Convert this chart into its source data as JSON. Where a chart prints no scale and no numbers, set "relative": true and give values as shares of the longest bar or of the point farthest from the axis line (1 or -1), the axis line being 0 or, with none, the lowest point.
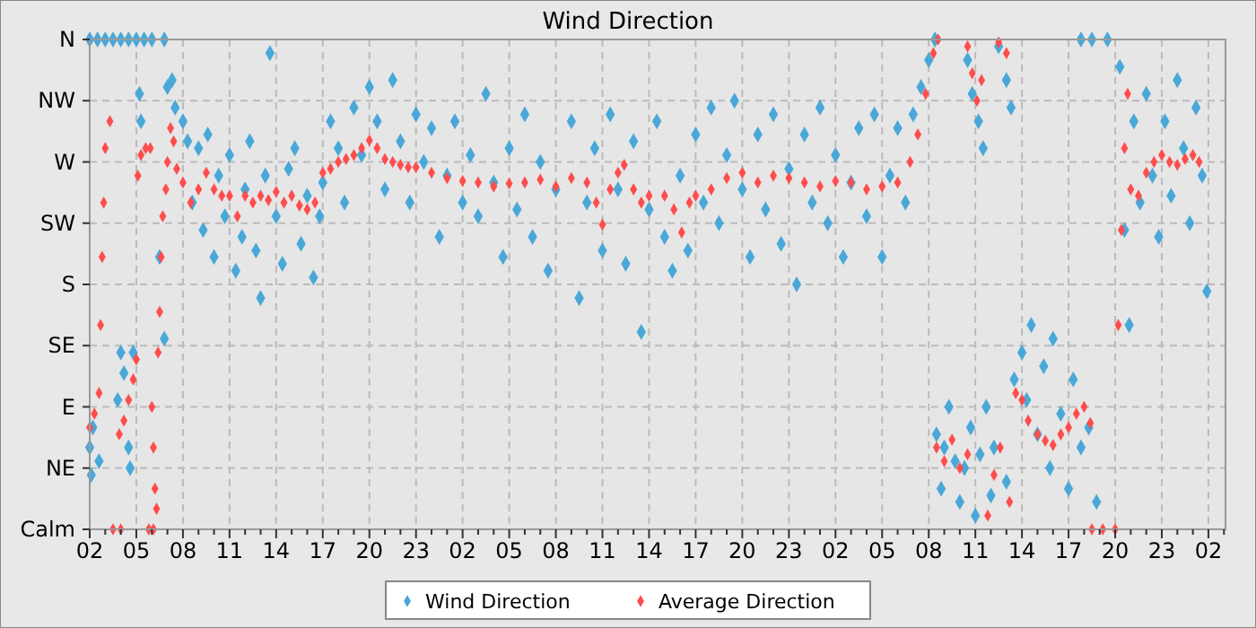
{
  "chart_data": {
    "type": "scatter",
    "title": "Wind Direction",
    "marker": "diamond",
    "grid": true,
    "legend": "bottom",
    "relative": true,
    "y_categories": [
      "N",
      "NW",
      "W",
      "SW",
      "S",
      "SE",
      "E",
      "NE",
      "Calm"
    ],
    "xlim": [
      "--01-01T02:00",
      "--01-04T03:06"
    ],
    "xticks": [
      {
        "value": "--01-01T02:00",
        "label": "02"
      },
      {
        "value": "--01-01T03:00",
        "label": null
      },
      {
        "value": "--01-01T04:00",
        "label": null
      },
      {
        "value": "--01-01T05:00",
        "label": "05"
      },
      {
        "value": "--01-01T06:00",
        "label": null
      },
      {
        "value": "--01-01T07:00",
        "label": null
      },
      {
        "value": "--01-01T08:00",
        "label": "08"
      },
      {
        "value": "--01-01T09:00",
        "label": null
      },
      {
        "value": "--01-01T10:00",
        "label": null
      },
      {
        "value": "--01-01T11:00",
        "label": "11"
      },
      {
        "value": "--01-01T12:00",
        "label": null
      },
      {
        "value": "--01-01T13:00",
        "label": null
      },
      {
        "value": "--01-01T14:00",
        "label": "14"
      },
      {
        "value": "--01-01T15:00",
        "label": null
      },
      {
        "value": "--01-01T16:00",
        "label": null
      },
      {
        "value": "--01-01T17:00",
        "label": "17"
      },
      {
        "value": "--01-01T18:00",
        "label": null
      },
      {
        "value": "--01-01T19:00",
        "label": null
      },
      {
        "value": "--01-01T20:00",
        "label": "20"
      },
      {
        "value": "--01-01T21:00",
        "label": null
      },
      {
        "value": "--01-01T22:00",
        "label": null
      },
      {
        "value": "--01-01T23:00",
        "label": "23"
      },
      {
        "value": "--01-02T00:00",
        "label": null
      },
      {
        "value": "--01-02T01:00",
        "label": null
      },
      {
        "value": "--01-02T02:00",
        "label": "02"
      },
      {
        "value": "--01-02T03:00",
        "label": null
      },
      {
        "value": "--01-02T04:00",
        "label": null
      },
      {
        "value": "--01-02T05:00",
        "label": "05"
      },
      {
        "value": "--01-02T06:00",
        "label": null
      },
      {
        "value": "--01-02T07:00",
        "label": null
      },
      {
        "value": "--01-02T08:00",
        "label": "08"
      },
      {
        "value": "--01-02T09:00",
        "label": null
      },
      {
        "value": "--01-02T10:00",
        "label": null
      },
      {
        "value": "--01-02T11:00",
        "label": "11"
      },
      {
        "value": "--01-02T12:00",
        "label": null
      },
      {
        "value": "--01-02T13:00",
        "label": null
      },
      {
        "value": "--01-02T14:00",
        "label": "14"
      },
      {
        "value": "--01-02T15:00",
        "label": null
      },
      {
        "value": "--01-02T16:00",
        "label": null
      },
      {
        "value": "--01-02T17:00",
        "label": "17"
      },
      {
        "value": "--01-02T18:00",
        "label": null
      },
      {
        "value": "--01-02T19:00",
        "label": null
      },
      {
        "value": "--01-02T20:00",
        "label": "20"
      },
      {
        "value": "--01-02T21:00",
        "label": null
      },
      {
        "value": "--01-02T22:00",
        "label": null
      },
      {
        "value": "--01-02T23:00",
        "label": "23"
      },
      {
        "value": "--01-03T00:00",
        "label": null
      },
      {
        "value": "--01-03T01:00",
        "label": null
      },
      {
        "value": "--01-03T02:00",
        "label": "02"
      },
      {
        "value": "--01-03T03:00",
        "label": null
      },
      {
        "value": "--01-03T04:00",
        "label": null
      },
      {
        "value": "--01-03T05:00",
        "label": "05"
      },
      {
        "value": "--01-03T06:00",
        "label": null
      },
      {
        "value": "--01-03T07:00",
        "label": null
      },
      {
        "value": "--01-03T08:00",
        "label": "08"
      },
      {
        "value": "--01-03T09:00",
        "label": null
      },
      {
        "value": "--01-03T10:00",
        "label": null
      },
      {
        "value": "--01-03T11:00",
        "label": "11"
      },
      {
        "value": "--01-03T12:00",
        "label": null
      },
      {
        "value": "--01-03T13:00",
        "label": null
      },
      {
        "value": "--01-03T14:00",
        "label": "14"
      },
      {
        "value": "--01-03T15:00",
        "label": null
      },
      {
        "value": "--01-03T16:00",
        "label": null
      },
      {
        "value": "--01-03T17:00",
        "label": "17"
      },
      {
        "value": "--01-03T18:00",
        "label": null
      },
      {
        "value": "--01-03T19:00",
        "label": null
      },
      {
        "value": "--01-03T20:00",
        "label": "20"
      },
      {
        "value": "--01-03T21:00",
        "label": null
      },
      {
        "value": "--01-03T22:00",
        "label": null
      },
      {
        "value": "--01-03T23:00",
        "label": "23"
      },
      {
        "value": "--01-04T00:00",
        "label": null
      },
      {
        "value": "--01-04T01:00",
        "label": null
      },
      {
        "value": "--01-04T02:00",
        "label": "02"
      },
      {
        "value": "--01-04T03:00",
        "label": null
      }
    ],
    "series": [
      {
        "name": "Wind Direction",
        "color": "#4aa8d8",
        "x": [
          "--01-01T02:00",
          "--01-01T02:30",
          "--01-01T03:00",
          "--01-01T03:30",
          "--01-01T04:00",
          "--01-01T04:30",
          "--01-01T05:00",
          "--01-01T05:30",
          "--01-01T06:00",
          "--01-01T06:48",
          "--01-01T02:00",
          "--01-01T02:06",
          "--01-01T02:12",
          "--01-01T02:36",
          "--01-01T03:48",
          "--01-01T04:00",
          "--01-01T04:12",
          "--01-01T04:30",
          "--01-01T04:36",
          "--01-01T04:48",
          "--01-01T05:12",
          "--01-01T05:18",
          "--01-01T06:30",
          "--01-01T06:48",
          "--01-01T07:00",
          "--01-01T07:18",
          "--01-01T07:30",
          "--01-01T08:00",
          "--01-01T08:18",
          "--01-01T08:36",
          "--01-01T09:00",
          "--01-01T09:18",
          "--01-01T09:36",
          "--01-01T10:00",
          "--01-01T10:18",
          "--01-01T10:42",
          "--01-01T11:00",
          "--01-01T11:24",
          "--01-01T11:48",
          "--01-01T12:00",
          "--01-01T12:18",
          "--01-01T12:42",
          "--01-01T13:00",
          "--01-01T13:18",
          "--01-01T13:36",
          "--01-01T14:00",
          "--01-01T14:24",
          "--01-01T14:48",
          "--01-01T15:12",
          "--01-01T15:36",
          "--01-01T16:00",
          "--01-01T16:24",
          "--01-01T16:48",
          "--01-01T17:00",
          "--01-01T17:30",
          "--01-01T18:00",
          "--01-01T18:24",
          "--01-01T19:00",
          "--01-01T19:30",
          "--01-01T20:00",
          "--01-01T20:30",
          "--01-01T21:00",
          "--01-01T21:30",
          "--01-01T22:00",
          "--01-01T22:36",
          "--01-01T23:00",
          "--01-01T23:30",
          "--01-02T00:00",
          "--01-02T00:30",
          "--01-02T01:00",
          "--01-02T01:30",
          "--01-02T02:00",
          "--01-02T02:30",
          "--01-02T03:00",
          "--01-02T03:30",
          "--01-02T04:00",
          "--01-02T04:36",
          "--01-02T05:00",
          "--01-02T05:30",
          "--01-02T06:00",
          "--01-02T06:30",
          "--01-02T07:00",
          "--01-02T07:30",
          "--01-02T08:00",
          "--01-02T09:00",
          "--01-02T09:30",
          "--01-02T10:00",
          "--01-02T10:30",
          "--01-02T11:00",
          "--01-02T11:30",
          "--01-02T12:00",
          "--01-02T12:30",
          "--01-02T13:00",
          "--01-02T13:30",
          "--01-02T14:00",
          "--01-02T14:30",
          "--01-02T15:00",
          "--01-02T15:30",
          "--01-02T16:00",
          "--01-02T16:30",
          "--01-02T17:00",
          "--01-02T17:30",
          "--01-02T18:00",
          "--01-02T18:30",
          "--01-02T19:00",
          "--01-02T19:30",
          "--01-02T20:00",
          "--01-02T20:30",
          "--01-02T21:00",
          "--01-02T21:30",
          "--01-02T22:00",
          "--01-02T22:30",
          "--01-02T23:00",
          "--01-02T23:30",
          "--01-03T00:00",
          "--01-03T00:30",
          "--01-03T01:00",
          "--01-03T01:30",
          "--01-03T02:00",
          "--01-03T02:30",
          "--01-03T03:00",
          "--01-03T03:30",
          "--01-03T04:00",
          "--01-03T04:30",
          "--01-03T05:00",
          "--01-03T05:30",
          "--01-03T06:00",
          "--01-03T06:30",
          "--01-03T07:00",
          "--01-03T07:30",
          "--01-03T08:00",
          "--01-03T08:24",
          "--01-03T08:30",
          "--01-03T08:48",
          "--01-03T09:00",
          "--01-03T09:18",
          "--01-03T09:42",
          "--01-03T10:00",
          "--01-03T10:18",
          "--01-03T10:42",
          "--01-03T11:00",
          "--01-03T11:18",
          "--01-03T11:42",
          "--01-03T12:00",
          "--01-03T12:12",
          "--01-03T13:00",
          "--01-03T13:30",
          "--01-03T14:00",
          "--01-03T14:18",
          "--01-03T14:36",
          "--01-03T15:00",
          "--01-03T15:24",
          "--01-03T15:48",
          "--01-03T16:00",
          "--01-03T16:30",
          "--01-03T17:00",
          "--01-03T17:18",
          "--01-03T17:48",
          "--01-03T18:18",
          "--01-03T18:48",
          "--01-03T10:30",
          "--01-03T10:48",
          "--01-03T11:12",
          "--01-03T11:30",
          "--01-03T12:30",
          "--01-03T13:00",
          "--01-03T13:18",
          "--01-03T17:48",
          "--01-03T18:30",
          "--01-03T19:30",
          "--01-03T20:18",
          "--01-03T20:36",
          "--01-03T20:54",
          "--01-03T21:12",
          "--01-03T21:36",
          "--01-03T22:00",
          "--01-03T22:24",
          "--01-03T22:48",
          "--01-03T23:12",
          "--01-03T23:36",
          "--01-04T00:00",
          "--01-04T00:24",
          "--01-04T00:48",
          "--01-04T01:12",
          "--01-04T01:36",
          "--01-04T01:54"
        ],
        "values": [
          1,
          1,
          1,
          1,
          1,
          1,
          1,
          1,
          1,
          1,
          0.167,
          0.111,
          0.208,
          0.139,
          0.264,
          0.361,
          0.319,
          0.167,
          0.125,
          0.361,
          0.889,
          0.833,
          0.556,
          0.389,
          0.903,
          0.917,
          0.861,
          0.833,
          0.792,
          0.667,
          0.778,
          0.611,
          0.806,
          0.556,
          0.722,
          0.639,
          0.764,
          0.528,
          0.597,
          0.694,
          0.792,
          0.569,
          0.472,
          0.722,
          0.972,
          0.639,
          0.542,
          0.736,
          0.778,
          0.583,
          0.681,
          0.514,
          0.639,
          0.708,
          0.833,
          0.778,
          0.667,
          0.861,
          0.764,
          0.903,
          0.833,
          0.694,
          0.917,
          0.792,
          0.667,
          0.847,
          0.75,
          0.819,
          0.597,
          0.722,
          0.833,
          0.667,
          0.764,
          0.639,
          0.889,
          0.708,
          0.556,
          0.778,
          0.653,
          0.847,
          0.597,
          0.75,
          0.528,
          0.694,
          0.833,
          0.472,
          0.667,
          0.778,
          0.569,
          0.847,
          0.694,
          0.542,
          0.792,
          0.403,
          0.653,
          0.833,
          0.597,
          0.528,
          0.722,
          0.569,
          0.806,
          0.667,
          0.861,
          0.625,
          0.764,
          0.875,
          0.694,
          0.556,
          0.806,
          0.653,
          0.847,
          0.583,
          0.736,
          0.5,
          0.806,
          0.667,
          0.861,
          0.625,
          0.764,
          0.556,
          0.708,
          0.819,
          0.639,
          0.847,
          0.556,
          0.722,
          0.819,
          0.667,
          0.847,
          0.903,
          0.958,
          1,
          0.194,
          0.083,
          0.167,
          0.25,
          0.139,
          0.056,
          0.125,
          0.208,
          0.028,
          0.153,
          0.25,
          0.069,
          0.167,
          0.097,
          0.306,
          0.361,
          0.264,
          0.417,
          0.194,
          0.333,
          0.125,
          0.389,
          0.236,
          0.083,
          0.306,
          0.167,
          0.208,
          0.056,
          0.958,
          0.889,
          0.833,
          0.778,
          0.986,
          0.917,
          0.861,
          1,
          1,
          1,
          0.944,
          0.611,
          0.417,
          0.833,
          0.667,
          0.889,
          0.722,
          0.597,
          0.833,
          0.681,
          0.917,
          0.778,
          0.625,
          0.861,
          0.722,
          0.486
        ]
      },
      {
        "name": "Average Direction",
        "color": "#ff4d4d",
        "x": [
          "--01-01T02:00",
          "--01-01T02:18",
          "--01-01T02:36",
          "--01-01T02:42",
          "--01-01T02:48",
          "--01-01T02:54",
          "--01-01T03:00",
          "--01-01T03:18",
          "--01-01T03:30",
          "--01-01T04:00",
          "--01-01T03:54",
          "--01-01T04:12",
          "--01-01T04:30",
          "--01-01T04:48",
          "--01-01T05:00",
          "--01-01T05:06",
          "--01-01T05:18",
          "--01-01T05:36",
          "--01-01T05:54",
          "--01-01T05:48",
          "--01-01T06:06",
          "--01-01T06:00",
          "--01-01T06:06",
          "--01-01T06:12",
          "--01-01T06:18",
          "--01-01T06:24",
          "--01-01T06:30",
          "--01-01T06:36",
          "--01-01T06:42",
          "--01-01T06:54",
          "--01-01T07:00",
          "--01-01T07:12",
          "--01-01T07:24",
          "--01-01T07:36",
          "--01-01T08:00",
          "--01-01T08:30",
          "--01-01T09:00",
          "--01-01T09:30",
          "--01-01T10:00",
          "--01-01T10:30",
          "--01-01T11:00",
          "--01-01T11:30",
          "--01-01T12:00",
          "--01-01T12:30",
          "--01-01T13:00",
          "--01-01T13:30",
          "--01-01T14:00",
          "--01-01T14:30",
          "--01-01T15:00",
          "--01-01T15:30",
          "--01-01T16:00",
          "--01-01T16:30",
          "--01-01T17:00",
          "--01-01T17:30",
          "--01-01T18:00",
          "--01-01T18:30",
          "--01-01T19:00",
          "--01-01T19:30",
          "--01-01T20:00",
          "--01-01T20:30",
          "--01-01T21:00",
          "--01-01T21:30",
          "--01-01T22:00",
          "--01-01T22:30",
          "--01-01T23:00",
          "--01-02T00:00",
          "--01-02T01:00",
          "--01-02T02:00",
          "--01-02T03:00",
          "--01-02T04:00",
          "--01-02T05:00",
          "--01-02T06:00",
          "--01-02T07:00",
          "--01-02T08:00",
          "--01-02T09:00",
          "--01-02T10:00",
          "--01-02T10:36",
          "--01-02T11:00",
          "--01-02T11:30",
          "--01-02T12:00",
          "--01-02T12:24",
          "--01-02T13:00",
          "--01-02T13:30",
          "--01-02T14:00",
          "--01-02T15:00",
          "--01-02T15:36",
          "--01-02T16:06",
          "--01-02T16:36",
          "--01-02T17:00",
          "--01-02T18:00",
          "--01-02T19:00",
          "--01-02T20:00",
          "--01-02T21:00",
          "--01-02T22:00",
          "--01-02T23:00",
          "--01-03T00:00",
          "--01-03T01:00",
          "--01-03T02:00",
          "--01-03T03:00",
          "--01-03T04:00",
          "--01-03T05:00",
          "--01-03T06:00",
          "--01-03T06:48",
          "--01-03T07:18",
          "--01-03T07:48",
          "--01-03T08:18",
          "--01-03T08:36",
          "--01-03T10:30",
          "--01-03T10:48",
          "--01-03T11:06",
          "--01-03T11:24",
          "--01-03T12:30",
          "--01-03T13:00",
          "--01-03T08:30",
          "--01-03T09:00",
          "--01-03T09:30",
          "--01-03T10:00",
          "--01-03T10:30",
          "--01-03T11:48",
          "--01-03T12:12",
          "--01-03T12:36",
          "--01-03T13:12",
          "--01-03T13:36",
          "--01-03T14:00",
          "--01-03T14:24",
          "--01-03T15:00",
          "--01-03T15:30",
          "--01-03T16:00",
          "--01-03T16:30",
          "--01-03T17:00",
          "--01-03T17:30",
          "--01-03T18:00",
          "--01-03T18:24",
          "--01-03T18:30",
          "--01-03T19:12",
          "--01-03T20:00",
          "--01-03T20:12",
          "--01-03T20:24",
          "--01-03T20:36",
          "--01-03T20:48",
          "--01-03T21:00",
          "--01-03T21:30",
          "--01-03T22:00",
          "--01-03T22:30",
          "--01-03T23:00",
          "--01-03T23:30",
          "--01-04T00:00",
          "--01-04T00:30",
          "--01-04T01:00",
          "--01-04T01:24"
        ],
        "values": [
          0.208,
          0.236,
          0.278,
          0.417,
          0.556,
          0.667,
          0.778,
          0.833,
          0,
          0,
          0.194,
          0.222,
          0.264,
          0.306,
          0.347,
          0.722,
          0.764,
          0.778,
          0.778,
          0,
          0,
          0.25,
          0.167,
          0.083,
          0.042,
          0.361,
          0.444,
          0.556,
          0.639,
          0.694,
          0.75,
          0.819,
          0.792,
          0.736,
          0.708,
          0.667,
          0.694,
          0.728,
          0.694,
          0.681,
          0.681,
          0.639,
          0.681,
          0.667,
          0.681,
          0.672,
          0.689,
          0.667,
          0.681,
          0.661,
          0.653,
          0.667,
          0.728,
          0.736,
          0.75,
          0.756,
          0.764,
          0.778,
          0.794,
          0.778,
          0.756,
          0.75,
          0.744,
          0.739,
          0.739,
          0.728,
          0.717,
          0.711,
          0.708,
          0.7,
          0.706,
          0.708,
          0.714,
          0.7,
          0.717,
          0.708,
          0.667,
          0.622,
          0.694,
          0.728,
          0.744,
          0.694,
          0.667,
          0.681,
          0.681,
          0.653,
          0.606,
          0.667,
          0.681,
          0.694,
          0.717,
          0.728,
          0.708,
          0.722,
          0.717,
          0.708,
          0.7,
          0.711,
          0.708,
          0.694,
          0.7,
          0.708,
          0.75,
          0.806,
          0.889,
          0.972,
          1,
          0.986,
          0.931,
          0.875,
          0.917,
          0.994,
          0.972,
          0.167,
          0.139,
          0.183,
          0.125,
          0.153,
          0.028,
          0.111,
          0.167,
          0.056,
          0.278,
          0.264,
          0.222,
          0.194,
          0.181,
          0.172,
          0.194,
          0.208,
          0.236,
          0.25,
          0.217,
          0,
          0,
          0,
          0.417,
          0.611,
          0.778,
          0.889,
          0.694,
          0.681,
          0.728,
          0.75,
          0.764,
          0.75,
          0.744,
          0.756,
          0.764,
          0.75
        ]
      }
    ]
  }
}
